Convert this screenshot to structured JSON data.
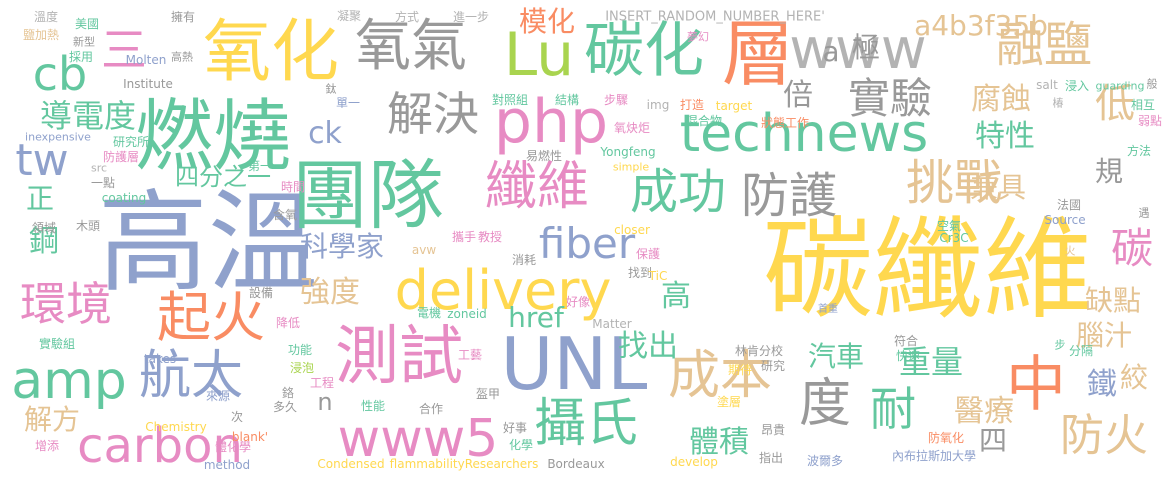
{
  "palette": {
    "yellow": "#ffd84f",
    "green": "#63c79f",
    "orange": "#f98c63",
    "blue": "#8fa1cc",
    "pink": "#e78bc3",
    "lime": "#a9d44f",
    "sand": "#e5c494",
    "gray": "#b3b3b3",
    "darkgray": "#999999"
  },
  "words": [
    {
      "text": "碳纖維",
      "color": "yellow"
    },
    {
      "text": "高溫",
      "color": "blue"
    },
    {
      "text": "團隊",
      "color": "green"
    },
    {
      "text": "燃燒",
      "color": "green"
    },
    {
      "text": "氧化",
      "color": "yellow"
    },
    {
      "text": "層",
      "color": "orange"
    },
    {
      "text": "氧氣",
      "color": "darkgray"
    },
    {
      "text": "Lu",
      "color": "lime"
    },
    {
      "text": "碳化",
      "color": "green"
    },
    {
      "text": "www",
      "color": "gray"
    },
    {
      "text": "融鹽",
      "color": "sand"
    },
    {
      "text": "UNL",
      "color": "blue"
    },
    {
      "text": "technews",
      "color": "green"
    },
    {
      "text": "php",
      "color": "pink"
    },
    {
      "text": "delivery",
      "color": "yellow"
    },
    {
      "text": "測試",
      "color": "pink"
    },
    {
      "text": "www5",
      "color": "pink"
    },
    {
      "text": "carbon",
      "color": "pink"
    },
    {
      "text": "amp",
      "color": "green"
    },
    {
      "text": "環境",
      "color": "pink"
    },
    {
      "text": "起火",
      "color": "orange"
    },
    {
      "text": "航太",
      "color": "blue"
    },
    {
      "text": "纖維",
      "color": "pink"
    },
    {
      "text": "成功",
      "color": "green"
    },
    {
      "text": "防護",
      "color": "darkgray"
    },
    {
      "text": "挑戰",
      "color": "sand"
    },
    {
      "text": "解決",
      "color": "darkgray"
    },
    {
      "text": "實驗",
      "color": "darkgray"
    },
    {
      "text": "cb",
      "color": "green"
    },
    {
      "text": "三",
      "color": "pink"
    },
    {
      "text": "tw",
      "color": "blue"
    },
    {
      "text": "fiber",
      "color": "blue"
    },
    {
      "text": "攝氏",
      "color": "green"
    },
    {
      "text": "成本",
      "color": "sand"
    },
    {
      "text": "度",
      "color": "darkgray"
    },
    {
      "text": "中",
      "color": "orange"
    },
    {
      "text": "耐",
      "color": "green"
    },
    {
      "text": "防火",
      "color": "sand"
    },
    {
      "text": "碳",
      "color": "pink"
    },
    {
      "text": "a4b3f35b",
      "color": "sand"
    },
    {
      "text": "低",
      "color": "sand"
    },
    {
      "text": "模化",
      "color": "orange"
    },
    {
      "text": "導電度",
      "color": "green"
    },
    {
      "text": "倍",
      "color": "darkgray"
    },
    {
      "text": "腐蝕",
      "color": "sand"
    },
    {
      "text": "特性",
      "color": "green"
    },
    {
      "text": "ck",
      "color": "blue"
    },
    {
      "text": "a",
      "color": "darkgray"
    },
    {
      "text": "極",
      "color": "darkgray"
    },
    {
      "text": "四分之一",
      "color": "green"
    },
    {
      "text": "兼具",
      "color": "sand"
    },
    {
      "text": "規",
      "color": "darkgray"
    },
    {
      "text": "科學家",
      "color": "blue"
    },
    {
      "text": "href",
      "color": "green"
    },
    {
      "text": "強度",
      "color": "sand"
    },
    {
      "text": "找出",
      "color": "green"
    },
    {
      "text": "高",
      "color": "green"
    },
    {
      "text": "缺點",
      "color": "sand"
    },
    {
      "text": "汽車",
      "color": "green"
    },
    {
      "text": "重量",
      "color": "green"
    },
    {
      "text": "腦汁",
      "color": "sand"
    },
    {
      "text": "鐵",
      "color": "blue"
    },
    {
      "text": "絞",
      "color": "sand"
    },
    {
      "text": "醫療",
      "color": "sand"
    },
    {
      "text": "體積",
      "color": "green"
    },
    {
      "text": "四",
      "color": "darkgray"
    },
    {
      "text": "鋼",
      "color": "green"
    },
    {
      "text": "正",
      "color": "green"
    },
    {
      "text": "解方",
      "color": "sand"
    },
    {
      "text": "n",
      "color": "darkgray"
    },
    {
      "text": "INSERT_RANDOM_NUMBER_HERE'",
      "color": "gray"
    },
    {
      "text": "凝聚",
      "color": "gray"
    },
    {
      "text": "方式",
      "color": "gray"
    },
    {
      "text": "進一步",
      "color": "gray"
    },
    {
      "text": "擁有",
      "color": "darkgray"
    },
    {
      "text": "溫度",
      "color": "gray"
    },
    {
      "text": "美國",
      "color": "green"
    },
    {
      "text": "鹽加熱",
      "color": "sand"
    },
    {
      "text": "新型",
      "color": "darkgray"
    },
    {
      "text": "採用",
      "color": "green"
    },
    {
      "text": "高熱",
      "color": "darkgray"
    },
    {
      "text": "Molten",
      "color": "blue"
    },
    {
      "text": "Institute",
      "color": "darkgray"
    },
    {
      "text": "鈦",
      "color": "darkgray"
    },
    {
      "text": "夢幻",
      "color": "pink"
    },
    {
      "text": "salt",
      "color": "gray"
    },
    {
      "text": "浸入",
      "color": "green"
    },
    {
      "text": "guarding",
      "color": "green"
    },
    {
      "text": "般",
      "color": "darkgray"
    },
    {
      "text": "椿",
      "color": "gray"
    },
    {
      "text": "相互",
      "color": "green"
    },
    {
      "text": "弱點",
      "color": "pink"
    },
    {
      "text": "方法",
      "color": "green"
    },
    {
      "text": "inexpensive",
      "color": "blue"
    },
    {
      "text": "研究所",
      "color": "green"
    },
    {
      "text": "防護層",
      "color": "pink"
    },
    {
      "text": "單一",
      "color": "blue"
    },
    {
      "text": "對照組",
      "color": "green"
    },
    {
      "text": "結構",
      "color": "green"
    },
    {
      "text": "步驟",
      "color": "pink"
    },
    {
      "text": "img",
      "color": "gray"
    },
    {
      "text": "打造",
      "color": "orange"
    },
    {
      "text": "target",
      "color": "yellow"
    },
    {
      "text": "氧炔炬",
      "color": "pink"
    },
    {
      "text": "混合物",
      "color": "green"
    },
    {
      "text": "狀態工作",
      "color": "orange"
    },
    {
      "text": "易燃性",
      "color": "darkgray"
    },
    {
      "text": "Yongfeng",
      "color": "green"
    },
    {
      "text": "simple",
      "color": "yellow"
    },
    {
      "text": "第一",
      "color": "green"
    },
    {
      "text": "時間",
      "color": "pink"
    },
    {
      "text": "一點",
      "color": "darkgray"
    },
    {
      "text": "coating",
      "color": "green"
    },
    {
      "text": "src",
      "color": "gray"
    },
    {
      "text": "含氧",
      "color": "darkgray"
    },
    {
      "text": "領域",
      "color": "darkgray"
    },
    {
      "text": "木頭",
      "color": "darkgray"
    },
    {
      "text": "實驗組",
      "color": "green"
    },
    {
      "text": "設備",
      "color": "darkgray"
    },
    {
      "text": "降低",
      "color": "pink"
    },
    {
      "text": "功能",
      "color": "green"
    },
    {
      "text": "浸泡",
      "color": "lime"
    },
    {
      "text": "takes",
      "color": "blue"
    },
    {
      "text": "電機",
      "color": "green"
    },
    {
      "text": "zoneid",
      "color": "green"
    },
    {
      "text": "Matter",
      "color": "gray"
    },
    {
      "text": "好像",
      "color": "pink"
    },
    {
      "text": "找到",
      "color": "darkgray"
    },
    {
      "text": "TiC",
      "color": "yellow"
    },
    {
      "text": "消耗",
      "color": "darkgray"
    },
    {
      "text": "avw",
      "color": "sand"
    },
    {
      "text": "攜手",
      "color": "pink"
    },
    {
      "text": "教授",
      "color": "pink"
    },
    {
      "text": "closer",
      "color": "yellow"
    },
    {
      "text": "保護",
      "color": "pink"
    },
    {
      "text": "Cr3C",
      "color": "green"
    },
    {
      "text": "Source",
      "color": "blue"
    },
    {
      "text": "法國",
      "color": "darkgray"
    },
    {
      "text": "遇",
      "color": "darkgray"
    },
    {
      "text": "空氣",
      "color": "green"
    },
    {
      "text": "火",
      "color": "sand"
    },
    {
      "text": "分隔",
      "color": "green"
    },
    {
      "text": "步",
      "color": "green"
    },
    {
      "text": "首重",
      "color": "blue"
    },
    {
      "text": "符合",
      "color": "darkgray"
    },
    {
      "text": "快速",
      "color": "green"
    },
    {
      "text": "林肯分校",
      "color": "darkgray"
    },
    {
      "text": "期待",
      "color": "yellow"
    },
    {
      "text": "研究",
      "color": "darkgray"
    },
    {
      "text": "工藝",
      "color": "pink"
    },
    {
      "text": "工程",
      "color": "pink"
    },
    {
      "text": "鉻",
      "color": "darkgray"
    },
    {
      "text": "多久",
      "color": "darkgray"
    },
    {
      "text": "來源",
      "color": "blue"
    },
    {
      "text": "次",
      "color": "darkgray"
    },
    {
      "text": "性能",
      "color": "green"
    },
    {
      "text": "合作",
      "color": "darkgray"
    },
    {
      "text": "盔甲",
      "color": "darkgray"
    },
    {
      "text": "塗層",
      "color": "yellow"
    },
    {
      "text": "Chemistry",
      "color": "yellow"
    },
    {
      "text": "blank'",
      "color": "orange"
    },
    {
      "text": "好事",
      "color": "darkgray"
    },
    {
      "text": "化學",
      "color": "green"
    },
    {
      "text": "昂貴",
      "color": "darkgray"
    },
    {
      "text": "防氧化",
      "color": "orange"
    },
    {
      "text": "增添",
      "color": "pink"
    },
    {
      "text": "體化學",
      "color": "pink"
    },
    {
      "text": "method",
      "color": "blue"
    },
    {
      "text": "Condensed",
      "color": "yellow"
    },
    {
      "text": "flammabilityResearchers",
      "color": "yellow"
    },
    {
      "text": "Bordeaux",
      "color": "darkgray"
    },
    {
      "text": "develop",
      "color": "yellow"
    },
    {
      "text": "指出",
      "color": "darkgray"
    },
    {
      "text": "波爾多",
      "color": "blue"
    },
    {
      "text": "內布拉斯加大學",
      "color": "blue"
    }
  ]
}
